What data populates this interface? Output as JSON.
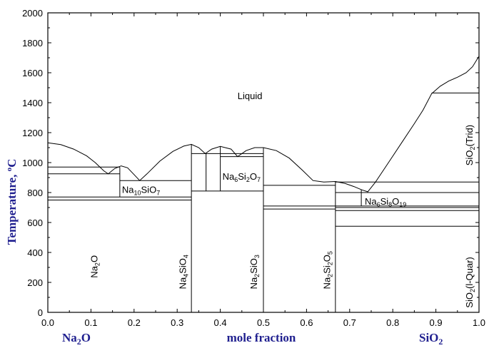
{
  "chart_data": {
    "type": "line",
    "title": "",
    "xlabel": "mole fraction",
    "ylabel": "Temperature, °C",
    "ylabel_parts": {
      "main": "Temperature, ",
      "sup": "o",
      "unit": "C"
    },
    "xlim": [
      0.0,
      1.0
    ],
    "ylim": [
      0,
      2000
    ],
    "x_ticks": [
      "0.0",
      "0.1",
      "0.2",
      "0.3",
      "0.4",
      "0.5",
      "0.6",
      "0.7",
      "0.8",
      "0.9",
      "1.0"
    ],
    "y_ticks": [
      "0",
      "200",
      "400",
      "600",
      "800",
      "1000",
      "1200",
      "1400",
      "1600",
      "1800",
      "2000"
    ],
    "end_labels": {
      "left": {
        "base": "Na",
        "sub": "2",
        "rest": "O"
      },
      "right": {
        "base": "SiO",
        "sub": "2",
        "rest": ""
      }
    },
    "region_labels": {
      "liquid": "Liquid",
      "na10sio7": [
        {
          "t": "Na"
        },
        {
          "t": "10",
          "s": true
        },
        {
          "t": "SiO"
        },
        {
          "t": "7",
          "s": true
        }
      ],
      "na6si2o7": [
        {
          "t": "Na"
        },
        {
          "t": "6",
          "s": true
        },
        {
          "t": "Si"
        },
        {
          "t": "2",
          "s": true
        },
        {
          "t": "O"
        },
        {
          "t": "7",
          "s": true
        }
      ],
      "na6si8o19": [
        {
          "t": "Na"
        },
        {
          "t": "6",
          "s": true
        },
        {
          "t": "Si"
        },
        {
          "t": "8",
          "s": true
        },
        {
          "t": "O"
        },
        {
          "t": "19",
          "s": true
        }
      ],
      "sio2_trid": [
        {
          "t": "SiO"
        },
        {
          "t": "2",
          "s": true
        },
        {
          "t": "(Trid)"
        }
      ],
      "na2o": [
        {
          "t": "Na"
        },
        {
          "t": "2",
          "s": true
        },
        {
          "t": "O"
        }
      ],
      "na4sio4": [
        {
          "t": "Na"
        },
        {
          "t": "4",
          "s": true
        },
        {
          "t": "SiO"
        },
        {
          "t": "4",
          "s": true
        }
      ],
      "na2sio3": [
        {
          "t": "Na"
        },
        {
          "t": "2",
          "s": true
        },
        {
          "t": "SiO"
        },
        {
          "t": "3",
          "s": true
        }
      ],
      "na2si2o5": [
        {
          "t": "Na"
        },
        {
          "t": "2",
          "s": true
        },
        {
          "t": "Si"
        },
        {
          "t": "2",
          "s": true
        },
        {
          "t": "O"
        },
        {
          "t": "5",
          "s": true
        }
      ],
      "sio2_lquar": [
        {
          "t": "SiO"
        },
        {
          "t": "2",
          "s": true
        },
        {
          "t": "(l-Quar)"
        }
      ]
    },
    "liquidus": [
      [
        0.0,
        1132
      ],
      [
        0.03,
        1120
      ],
      [
        0.06,
        1090
      ],
      [
        0.09,
        1045
      ],
      [
        0.11,
        1000
      ],
      [
        0.13,
        945
      ],
      [
        0.14,
        925
      ],
      [
        0.155,
        960
      ],
      [
        0.17,
        978
      ],
      [
        0.185,
        965
      ],
      [
        0.2,
        920
      ],
      [
        0.213,
        880
      ],
      [
        0.23,
        925
      ],
      [
        0.26,
        1010
      ],
      [
        0.29,
        1075
      ],
      [
        0.315,
        1110
      ],
      [
        0.333,
        1122
      ],
      [
        0.35,
        1100
      ],
      [
        0.365,
        1060
      ],
      [
        0.38,
        1090
      ],
      [
        0.4,
        1108
      ],
      [
        0.425,
        1090
      ],
      [
        0.44,
        1040
      ],
      [
        0.46,
        1080
      ],
      [
        0.48,
        1100
      ],
      [
        0.5,
        1100
      ],
      [
        0.53,
        1080
      ],
      [
        0.56,
        1030
      ],
      [
        0.59,
        950
      ],
      [
        0.615,
        880
      ],
      [
        0.64,
        870
      ],
      [
        0.667,
        874
      ],
      [
        0.69,
        860
      ],
      [
        0.71,
        840
      ],
      [
        0.728,
        818
      ],
      [
        0.742,
        805
      ],
      [
        0.76,
        870
      ],
      [
        0.79,
        1000
      ],
      [
        0.82,
        1130
      ],
      [
        0.85,
        1260
      ],
      [
        0.87,
        1350
      ],
      [
        0.89,
        1460
      ],
      [
        0.91,
        1510
      ],
      [
        0.93,
        1545
      ],
      [
        0.95,
        1570
      ],
      [
        0.97,
        1600
      ],
      [
        0.985,
        1640
      ],
      [
        1.0,
        1710
      ]
    ],
    "horizontal_lines": [
      {
        "x": [
          0.0,
          0.167
        ],
        "y": 970
      },
      {
        "x": [
          0.0,
          0.167
        ],
        "y": 925
      },
      {
        "x": [
          0.0,
          0.333
        ],
        "y": 770
      },
      {
        "x": [
          0.0,
          0.333
        ],
        "y": 750
      },
      {
        "x": [
          0.167,
          0.333
        ],
        "y": 880
      },
      {
        "x": [
          0.333,
          0.5
        ],
        "y": 1060
      },
      {
        "x": [
          0.333,
          0.5
        ],
        "y": 810
      },
      {
        "x": [
          0.5,
          0.667
        ],
        "y": 848
      },
      {
        "x": [
          0.5,
          0.667
        ],
        "y": 710
      },
      {
        "x": [
          0.5,
          0.667
        ],
        "y": 690
      },
      {
        "x": [
          0.667,
          1.0
        ],
        "y": 870
      },
      {
        "x": [
          0.667,
          1.0
        ],
        "y": 800
      },
      {
        "x": [
          0.667,
          1.0
        ],
        "y": 710
      },
      {
        "x": [
          0.667,
          1.0
        ],
        "y": 700
      },
      {
        "x": [
          0.667,
          1.0
        ],
        "y": 680
      },
      {
        "x": [
          0.667,
          1.0
        ],
        "y": 575
      },
      {
        "x": [
          0.89,
          1.0
        ],
        "y": 1465
      },
      {
        "x": [
          0.4,
          0.5
        ],
        "y": 1040
      }
    ],
    "vertical_lines": [
      {
        "x": 0.167,
        "y": [
          770,
          970
        ]
      },
      {
        "x": 0.333,
        "y": [
          0,
          1122
        ]
      },
      {
        "x": 0.367,
        "y": [
          810,
          1060
        ]
      },
      {
        "x": 0.4,
        "y": [
          810,
          1108
        ]
      },
      {
        "x": 0.5,
        "y": [
          0,
          1100
        ]
      },
      {
        "x": 0.667,
        "y": [
          0,
          874
        ]
      },
      {
        "x": 0.727,
        "y": [
          710,
          818
        ]
      }
    ],
    "grid": false,
    "legend": "none"
  }
}
